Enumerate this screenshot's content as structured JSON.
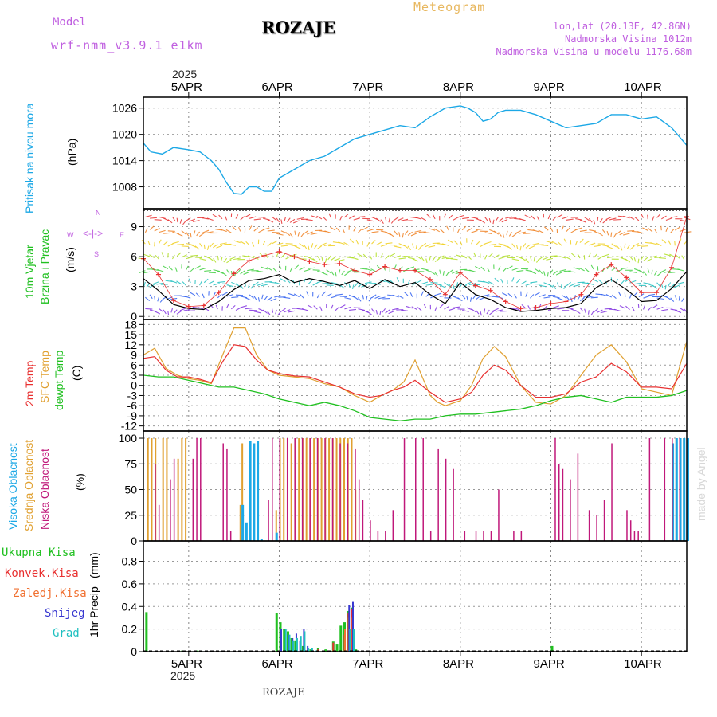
{
  "header": {
    "model_label": "Model",
    "model_name": "wrf-nmm_v3.9.1 e1km",
    "station": "ROZAJE",
    "title": "Meteogram",
    "lonlat": "lon,lat (20.13E, 42.86N)",
    "elevation": "Nadmorska Visina 1012m",
    "model_elevation": "Nadmorska Visina u modelu 1176.68m",
    "year": "2025",
    "footer_station": "ROZAJE",
    "watermark": "made by Angel"
  },
  "colors": {
    "pressure": "#1ca8e6",
    "wind_speed": "#000000",
    "gust": "#e83030",
    "t2m": "#e83030",
    "tsfc": "#e0a030",
    "dewpt": "#20c020",
    "cloud_high": "#1ca8e6",
    "cloud_mid": "#e0a030",
    "cloud_low": "#c0187a",
    "precip_total": "#20c020",
    "precip_conv": "#e83030",
    "precip_frozen": "#f07030",
    "snow": "#3838d0",
    "graupel": "#20c0c0",
    "model_title": "#c060e0",
    "header_title": "#e8b860"
  },
  "chart_data": [
    {
      "type": "line",
      "panel": "pressure",
      "ylabel_lines": [
        "Pritisak na nivou mora",
        "(hPa)"
      ],
      "x_ticks": [
        "5APR",
        "6APR",
        "7APR",
        "8APR",
        "9APR",
        "10APR"
      ],
      "x_hours_start": 0,
      "x_hours_end": 144,
      "yticks": [
        1008,
        1014,
        1020,
        1026
      ],
      "ylim": [
        1003,
        1028.5
      ],
      "series": [
        {
          "x": [
            0,
            2,
            5,
            8,
            12,
            15,
            18,
            20,
            22,
            24,
            26,
            28,
            30,
            32,
            34,
            36,
            40,
            44,
            48,
            52,
            56,
            60,
            64,
            68,
            72,
            76,
            80,
            84,
            86,
            88,
            90,
            92,
            94,
            96,
            100,
            104,
            108,
            112,
            116,
            120,
            124,
            128,
            132,
            136,
            140,
            144
          ],
          "y": [
            1018,
            1016,
            1015.5,
            1017,
            1016.5,
            1016,
            1014,
            1012,
            1009,
            1006.5,
            1006.3,
            1008,
            1008,
            1007,
            1007,
            1010,
            1012,
            1014,
            1015,
            1017,
            1019,
            1020,
            1021,
            1022,
            1021.5,
            1024,
            1026,
            1026.5,
            1026,
            1025,
            1023,
            1023.5,
            1025,
            1025.5,
            1025.5,
            1024.5,
            1023,
            1021.5,
            1022,
            1022.5,
            1024.5,
            1024.5,
            1023.5,
            1024,
            1021.5,
            1017.5
          ]
        }
      ]
    },
    {
      "type": "line",
      "panel": "wind",
      "ylabel_lines": [
        "10m Vjetar",
        "Brzina i Pravac",
        "(m/s)"
      ],
      "direction_legend": [
        "N",
        "W",
        "E",
        "S"
      ],
      "yticks": [
        0,
        3,
        6,
        9
      ],
      "ylim": [
        -0.3,
        10.8
      ],
      "series": [
        {
          "kind": "speed",
          "x": [
            0,
            4,
            8,
            12,
            16,
            20,
            24,
            28,
            32,
            36,
            40,
            44,
            48,
            52,
            56,
            60,
            64,
            68,
            72,
            76,
            80,
            84,
            88,
            92,
            96,
            100,
            104,
            108,
            112,
            116,
            120,
            124,
            128,
            132,
            136,
            140,
            144
          ],
          "y": [
            3.8,
            2.6,
            1.2,
            0.8,
            0.7,
            1.5,
            2.7,
            3.6,
            3.8,
            4.2,
            3.4,
            3.8,
            3.5,
            3.1,
            3.6,
            2.8,
            3.7,
            3.0,
            3.4,
            2.2,
            1.3,
            3.4,
            2.2,
            1.7,
            0.9,
            0.5,
            0.6,
            0.8,
            0.9,
            1.3,
            2.9,
            3.7,
            2.7,
            1.5,
            1.6,
            2.8,
            4.5
          ]
        },
        {
          "kind": "gust",
          "x": [
            0,
            4,
            8,
            12,
            16,
            20,
            24,
            28,
            32,
            36,
            40,
            44,
            48,
            52,
            56,
            60,
            64,
            68,
            72,
            76,
            80,
            84,
            88,
            92,
            96,
            100,
            104,
            108,
            112,
            116,
            120,
            124,
            128,
            132,
            136,
            140,
            144
          ],
          "y": [
            5.8,
            4.2,
            1.6,
            1.0,
            1.1,
            2.4,
            4.3,
            5.6,
            6.1,
            6.5,
            6.0,
            5.5,
            5.2,
            5.3,
            4.6,
            4.2,
            5.0,
            4.6,
            4.6,
            3.7,
            2.2,
            4.4,
            3.1,
            2.6,
            1.5,
            0.8,
            0.9,
            1.3,
            1.5,
            2.2,
            4.2,
            5.2,
            3.9,
            2.4,
            2.4,
            4.9,
            10.0
          ]
        }
      ]
    },
    {
      "type": "line",
      "panel": "temperature",
      "ylabel_lines": [
        "2m Temp",
        "SFC Temp",
        "dewpt Temp",
        "(C)"
      ],
      "yticks": [
        -12,
        -9,
        -6,
        -3,
        0,
        3,
        6,
        9,
        12,
        15,
        18
      ],
      "ylim": [
        -13.5,
        19.5
      ],
      "series": [
        {
          "kind": "t2m",
          "x": [
            0,
            3,
            6,
            9,
            12,
            15,
            18,
            21,
            24,
            27,
            30,
            33,
            36,
            40,
            44,
            48,
            52,
            56,
            60,
            63,
            66,
            69,
            72,
            76,
            78,
            80,
            84,
            87,
            90,
            93,
            96,
            100,
            104,
            108,
            112,
            116,
            120,
            124,
            128,
            132,
            136,
            140,
            144
          ],
          "y": [
            8,
            8.5,
            4.5,
            2.5,
            2.5,
            1.8,
            0.8,
            7,
            12,
            11.5,
            7.5,
            4.5,
            3.5,
            2.8,
            2.5,
            1,
            -0.5,
            -2.5,
            -3.5,
            -3,
            -1.5,
            -0.5,
            1.5,
            -2,
            -3.5,
            -5,
            -4,
            -2,
            3,
            6,
            4.5,
            0,
            -3.5,
            -3.5,
            -2.5,
            1,
            2.5,
            6.5,
            4,
            -0.5,
            -0.5,
            -1,
            6.5
          ]
        },
        {
          "kind": "tsfc",
          "x": [
            0,
            3,
            6,
            9,
            12,
            15,
            18,
            21,
            24,
            27,
            30,
            33,
            36,
            40,
            44,
            48,
            52,
            56,
            60,
            63,
            66,
            69,
            72,
            76,
            78,
            80,
            84,
            87,
            90,
            93,
            96,
            100,
            104,
            108,
            112,
            116,
            120,
            124,
            128,
            132,
            136,
            140,
            144
          ],
          "y": [
            9,
            11,
            5,
            3,
            2,
            1.5,
            0.5,
            9,
            17,
            17,
            9,
            4.5,
            3,
            2.5,
            2,
            0.5,
            -0.5,
            -3,
            -5,
            -3,
            -1.5,
            1,
            7.5,
            -3,
            -5,
            -6,
            -4.5,
            0,
            8,
            11.5,
            8.5,
            0,
            -5,
            -5.5,
            -3,
            3,
            9,
            12,
            7,
            -1,
            -2,
            -3,
            13
          ]
        },
        {
          "kind": "dewpt",
          "x": [
            0,
            4,
            8,
            12,
            16,
            20,
            24,
            28,
            32,
            36,
            40,
            44,
            48,
            52,
            56,
            60,
            64,
            68,
            72,
            76,
            80,
            84,
            88,
            92,
            96,
            100,
            104,
            108,
            112,
            116,
            120,
            124,
            128,
            132,
            136,
            140,
            144
          ],
          "y": [
            3,
            2.5,
            2.5,
            1.5,
            0.5,
            -0.5,
            -0.5,
            -1.5,
            -2.5,
            -4,
            -5,
            -6,
            -5,
            -6,
            -7.5,
            -9.5,
            -10,
            -10.5,
            -10,
            -10,
            -9,
            -8.5,
            -8.5,
            -8,
            -7.5,
            -7,
            -6,
            -4.5,
            -3.5,
            -3,
            -4,
            -5,
            -3.5,
            -3.5,
            -3.5,
            -3,
            -1.5
          ]
        }
      ]
    },
    {
      "type": "bar",
      "panel": "cloud",
      "ylabel_lines": [
        "Visoka Oblacnost",
        "Srednja Oblacnost",
        "Niska Oblacnost",
        "(%)"
      ],
      "yticks": [
        0,
        25,
        50,
        75,
        100
      ],
      "ylim": [
        0,
        107
      ],
      "series": [
        {
          "kind": "high",
          "x": [
            26,
            27,
            28,
            29,
            30,
            31,
            35,
            140,
            141,
            142,
            143,
            144
          ],
          "y": [
            35,
            18,
            97,
            95,
            97,
            2,
            8,
            95,
            100,
            100,
            100,
            100
          ]
        },
        {
          "kind": "mid",
          "x": [
            1,
            2,
            3,
            5,
            6,
            9,
            10,
            11,
            25.5,
            26,
            35,
            36,
            37,
            38,
            39,
            40,
            41,
            42,
            43,
            44,
            45,
            46,
            47,
            48,
            49,
            50,
            51,
            52,
            53,
            54,
            55,
            56,
            141,
            142,
            143
          ],
          "y": [
            100,
            100,
            100,
            100,
            100,
            80,
            100,
            100,
            35,
            95,
            30,
            100,
            100,
            100,
            95,
            100,
            100,
            100,
            100,
            100,
            100,
            100,
            100,
            100,
            100,
            100,
            100,
            100,
            100,
            100,
            100,
            50,
            100,
            100,
            100
          ]
        },
        {
          "kind": "low",
          "x": [
            3,
            4,
            7,
            8,
            13,
            14,
            15,
            21,
            22,
            23,
            33,
            34,
            36,
            38,
            40,
            42,
            44,
            46,
            48,
            50,
            52,
            54,
            56,
            57,
            58,
            60,
            62,
            64,
            66,
            69,
            72,
            74,
            76,
            78,
            80,
            82,
            85,
            88,
            90,
            92,
            94,
            98,
            100,
            109,
            110,
            111,
            113,
            115,
            118,
            120,
            122,
            124,
            128,
            129,
            130,
            131,
            134,
            138,
            140,
            142
          ],
          "y": [
            75,
            35,
            60,
            80,
            80,
            100,
            100,
            95,
            90,
            10,
            40,
            100,
            100,
            100,
            100,
            100,
            100,
            100,
            100,
            100,
            95,
            95,
            90,
            60,
            40,
            20,
            10,
            10,
            30,
            100,
            100,
            100,
            10,
            90,
            80,
            70,
            10,
            10,
            10,
            10,
            50,
            10,
            10,
            100,
            75,
            70,
            60,
            85,
            30,
            25,
            40,
            95,
            30,
            20,
            10,
            10,
            100,
            100,
            100,
            100
          ]
        }
      ]
    },
    {
      "type": "bar",
      "panel": "precip",
      "ylabel_lines": [
        "1hr Precip",
        "(mm)"
      ],
      "legend": [
        "Ukupna Kisa",
        "Konvek.Kisa",
        "Zaledj.Kisa",
        "Snijeg",
        "Grad"
      ],
      "yticks": [
        0,
        0.2,
        0.4,
        0.6,
        0.8
      ],
      "ylim": [
        0,
        0.98
      ],
      "series": [
        {
          "kind": "total",
          "x": [
            0.5,
            9,
            10,
            14,
            15,
            35,
            36,
            37,
            38,
            39,
            40,
            42,
            44,
            46,
            48,
            49,
            50,
            51,
            52,
            53,
            54,
            55,
            56,
            108
          ],
          "y": [
            0.35,
            0.01,
            0.01,
            0.01,
            0.01,
            0.34,
            0.26,
            0.2,
            0.18,
            0.12,
            0.1,
            0.05,
            0.02,
            0.03,
            0.02,
            0.01,
            0.09,
            0.07,
            0.23,
            0.26,
            0.36,
            0.39,
            0.02,
            0.05
          ]
        },
        {
          "kind": "conv",
          "x": [
            46,
            50,
            53,
            54,
            55
          ],
          "y": [
            0.02,
            0.08,
            0.15,
            0.34,
            0.38
          ]
        },
        {
          "kind": "frozen",
          "x": [
            53,
            54,
            55
          ],
          "y": [
            0.2,
            0.3,
            0.3
          ]
        },
        {
          "kind": "snow",
          "x": [
            36,
            38,
            39,
            40,
            41,
            42,
            43,
            44,
            54,
            55,
            56
          ],
          "y": [
            0.2,
            0.15,
            0.12,
            0.16,
            0.1,
            0.2,
            0.05,
            0.02,
            0.41,
            0.44,
            0.01
          ]
        },
        {
          "kind": "graupel",
          "x": [
            37,
            38,
            39,
            40,
            41,
            42,
            43,
            44,
            45,
            54,
            55
          ],
          "y": [
            0.2,
            0.15,
            0.1,
            0.12,
            0.14,
            0.18,
            0.03,
            0.03,
            0.01,
            0.2,
            0.2
          ]
        }
      ]
    }
  ]
}
